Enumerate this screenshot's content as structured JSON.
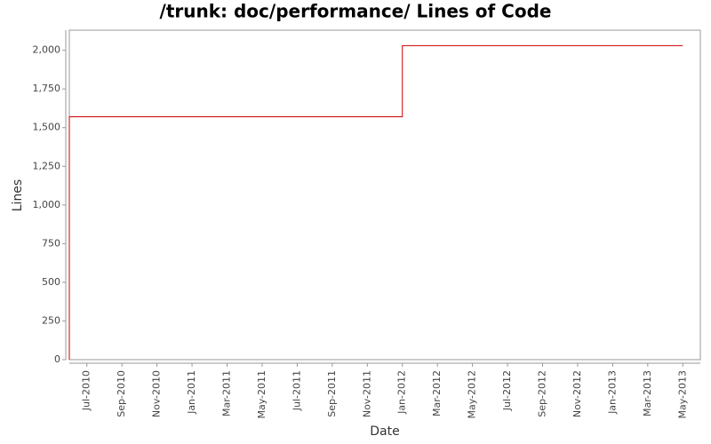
{
  "chart_data": {
    "type": "step",
    "title": "/trunk: doc/performance/ Lines of Code",
    "x_label": "Date",
    "y_label": "Lines",
    "x": [
      "2010-06",
      "2010-06",
      "2012-01",
      "2013-05"
    ],
    "series": [
      {
        "name": "Lines",
        "color": "#cc0000",
        "values": [
          0,
          1570,
          2030,
          2030
        ]
      }
    ],
    "xlim": [
      "2010-06",
      "2013-06"
    ],
    "xticks": [
      {
        "value": "2010-07",
        "label": "Jul-2010"
      },
      {
        "value": "2010-09",
        "label": "Sep-2010"
      },
      {
        "value": "2010-11",
        "label": "Nov-2010"
      },
      {
        "value": "2011-01",
        "label": "Jan-2011"
      },
      {
        "value": "2011-03",
        "label": "Mar-2011"
      },
      {
        "value": "2011-05",
        "label": "May-2011"
      },
      {
        "value": "2011-07",
        "label": "Jul-2011"
      },
      {
        "value": "2011-09",
        "label": "Sep-2011"
      },
      {
        "value": "2011-11",
        "label": "Nov-2011"
      },
      {
        "value": "2012-01",
        "label": "Jan-2012"
      },
      {
        "value": "2012-03",
        "label": "Mar-2012"
      },
      {
        "value": "2012-05",
        "label": "May-2012"
      },
      {
        "value": "2012-07",
        "label": "Jul-2012"
      },
      {
        "value": "2012-09",
        "label": "Sep-2012"
      },
      {
        "value": "2012-11",
        "label": "Nov-2012"
      },
      {
        "value": "2013-01",
        "label": "Jan-2013"
      },
      {
        "value": "2013-03",
        "label": "Mar-2013"
      },
      {
        "value": "2013-05",
        "label": "May-2013"
      }
    ],
    "ylim": [
      0,
      2130
    ],
    "yticks": [
      0,
      250,
      500,
      750,
      {
        "value": 1000,
        "label": "1,000"
      },
      {
        "value": 1250,
        "label": "1,250"
      },
      {
        "value": 1500,
        "label": "1,500"
      },
      {
        "value": 1750,
        "label": "1,750"
      },
      {
        "value": 2000,
        "label": "2,000"
      }
    ],
    "grid": false
  }
}
